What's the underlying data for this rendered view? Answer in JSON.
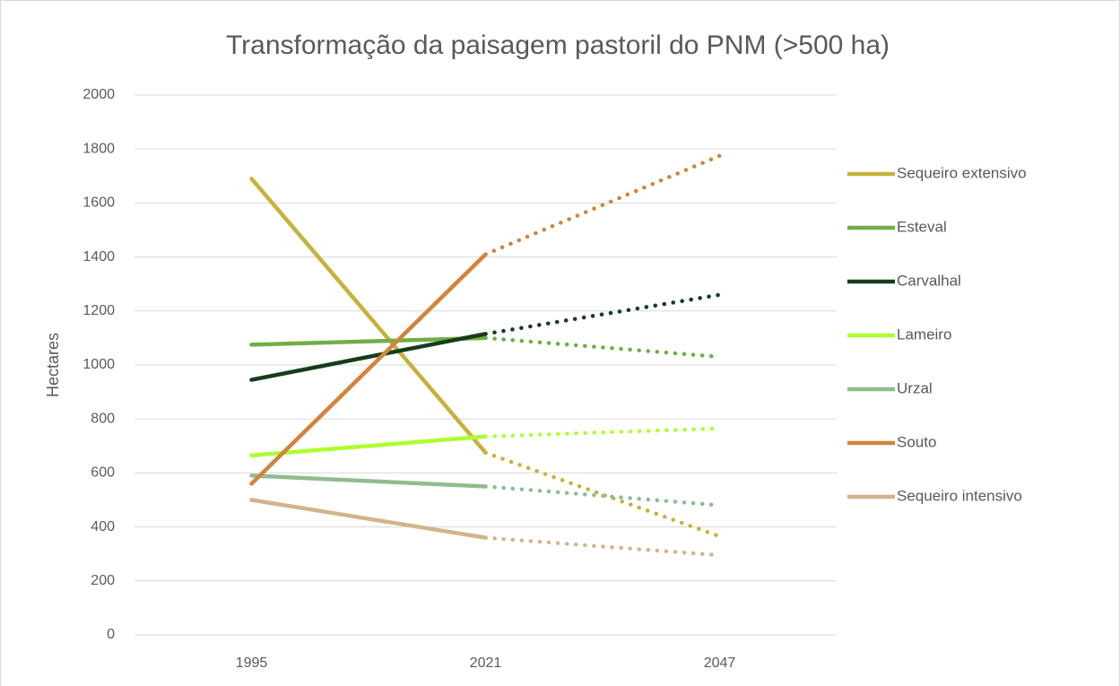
{
  "chart_data": {
    "type": "line",
    "title": "Transformação da paisagem pastoril do PNM (>500 ha)",
    "y_label": "Hectares",
    "categories": [
      "1995",
      "2021",
      "2047"
    ],
    "segment_styles": [
      "solid",
      "dotted"
    ],
    "series": [
      {
        "name": "Sequeiro extensivo",
        "color": "#c8b13a",
        "values": [
          1690,
          675,
          365
        ]
      },
      {
        "name": "Esteval",
        "color": "#70ad47",
        "values": [
          1075,
          1100,
          1030
        ]
      },
      {
        "name": "Carvalhal",
        "color": "#163d18",
        "values": [
          945,
          1115,
          1260
        ]
      },
      {
        "name": "Lameiro",
        "color": "#adff2f",
        "values": [
          665,
          735,
          765
        ]
      },
      {
        "name": "Urzal",
        "color": "#8fbc8f",
        "values": [
          590,
          550,
          480
        ]
      },
      {
        "name": "Souto",
        "color": "#d2843c",
        "values": [
          560,
          1410,
          1775
        ]
      },
      {
        "name": "Sequeiro intensivo",
        "color": "#d2b48c",
        "values": [
          500,
          360,
          295
        ]
      }
    ],
    "ylim": [
      0,
      2000
    ],
    "yticks": [
      0,
      200,
      400,
      600,
      800,
      1000,
      1200,
      1400,
      1600,
      1800,
      2000
    ],
    "grid": true,
    "legend": "right"
  }
}
